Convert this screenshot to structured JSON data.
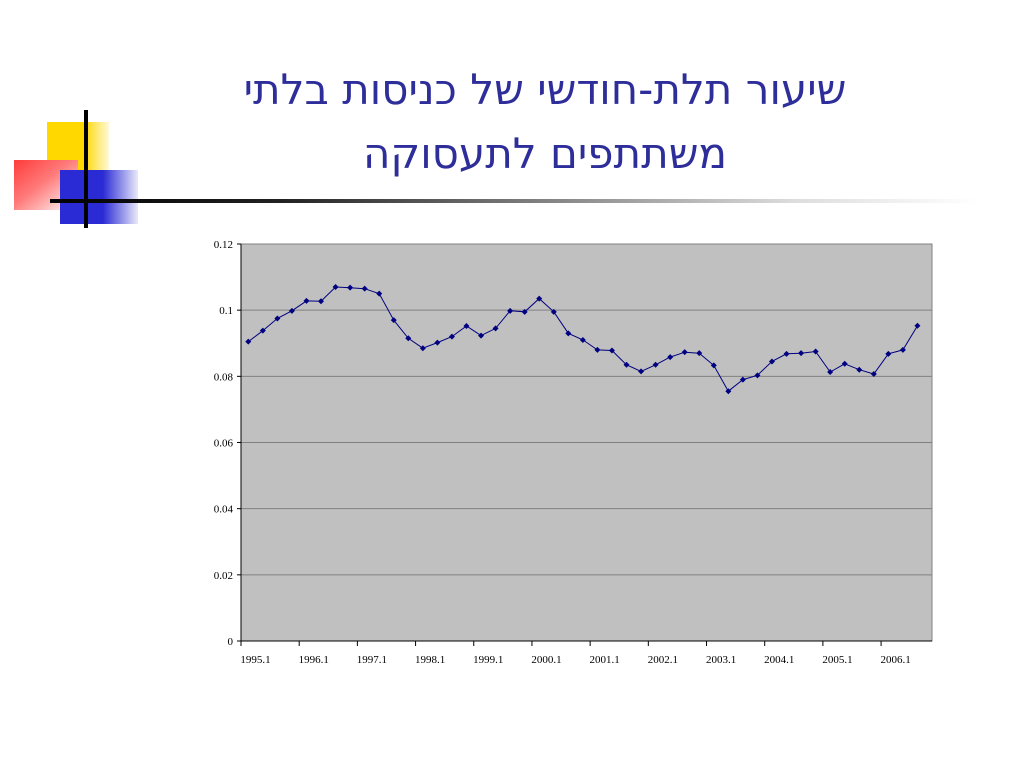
{
  "title_lines": [
    "שיעור תלת-חודשי של כניסות בלתי",
    "משתתפים לתעסוקה"
  ],
  "chart_data": {
    "type": "line",
    "title": "",
    "xlabel": "",
    "ylabel": "",
    "ylim": [
      0,
      0.12
    ],
    "yticks": [
      "0",
      "0.02",
      "0.04",
      "0.06",
      "0.08",
      "0.1",
      "0.12"
    ],
    "xtick_labels": [
      "1995.1",
      "1996.1",
      "1997.1",
      "1998.1",
      "1999.1",
      "2000.1",
      "2001.1",
      "2002.1",
      "2003.1",
      "2004.1",
      "2005.1",
      "2006.1"
    ],
    "grid": true,
    "legend": "none",
    "colors": {
      "plot_bg": "#c0c0c0",
      "line": "#000080",
      "grid": "#808080"
    },
    "x": [
      "1995.1",
      "1995.2",
      "1995.3",
      "1995.4",
      "1996.1",
      "1996.2",
      "1996.3",
      "1996.4",
      "1997.1",
      "1997.2",
      "1997.3",
      "1997.4",
      "1998.1",
      "1998.2",
      "1998.3",
      "1998.4",
      "1999.1",
      "1999.2",
      "1999.3",
      "1999.4",
      "2000.1",
      "2000.2",
      "2000.3",
      "2000.4",
      "2001.1",
      "2001.2",
      "2001.3",
      "2001.4",
      "2002.1",
      "2002.2",
      "2002.3",
      "2002.4",
      "2003.1",
      "2003.2",
      "2003.3",
      "2003.4",
      "2004.1",
      "2004.2",
      "2004.3",
      "2004.4",
      "2005.1",
      "2005.2",
      "2005.3",
      "2005.4",
      "2006.1",
      "2006.2",
      "2006.3"
    ],
    "values": [
      0.0905,
      0.0938,
      0.0975,
      0.0998,
      0.1028,
      0.1027,
      0.107,
      0.1068,
      0.1065,
      0.105,
      0.097,
      0.0915,
      0.0885,
      0.0902,
      0.092,
      0.0952,
      0.0923,
      0.0945,
      0.0998,
      0.0995,
      0.1035,
      0.0995,
      0.093,
      0.091,
      0.088,
      0.0878,
      0.0835,
      0.0815,
      0.0835,
      0.0858,
      0.0873,
      0.087,
      0.0833,
      0.0755,
      0.079,
      0.0803,
      0.0845,
      0.0868,
      0.087,
      0.0875,
      0.0813,
      0.0838,
      0.082,
      0.0807,
      0.0868,
      0.088,
      0.0953
    ]
  }
}
